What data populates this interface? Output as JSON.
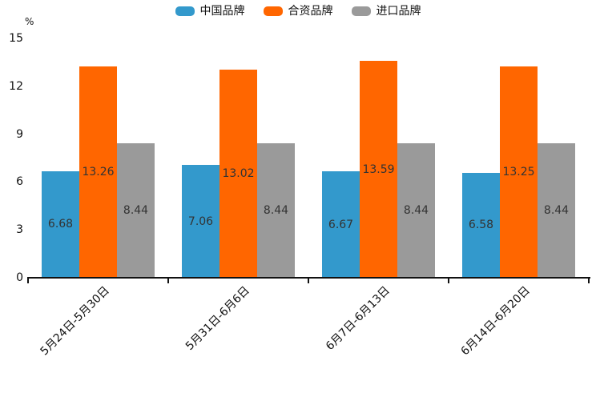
{
  "chart_data": {
    "type": "bar",
    "ylabel": "%",
    "ylim": [
      0,
      15
    ],
    "yticks": [
      0,
      3,
      6,
      9,
      12,
      15
    ],
    "grid": false,
    "legend_position": "top-center",
    "value_labels": "inside-center, 2 decimals",
    "x_tick_label_rotation": 45,
    "categories": [
      "5月24日-5月30日",
      "5月31日-6月6日",
      "6月7日-6月13日",
      "6月14日-6月20日"
    ],
    "series": [
      {
        "name": "中国品牌",
        "color": "#3399CC",
        "values": [
          6.68,
          7.06,
          6.67,
          6.58
        ]
      },
      {
        "name": "合资品牌",
        "color": "#FF6600",
        "values": [
          13.26,
          13.02,
          13.59,
          13.25
        ]
      },
      {
        "name": "进口品牌",
        "color": "#9A9A9A",
        "values": [
          8.44,
          8.44,
          8.44,
          8.44
        ]
      }
    ],
    "colors": {
      "axis": "#111111",
      "value_label": "#333333",
      "background": "#FFFFFF"
    }
  }
}
